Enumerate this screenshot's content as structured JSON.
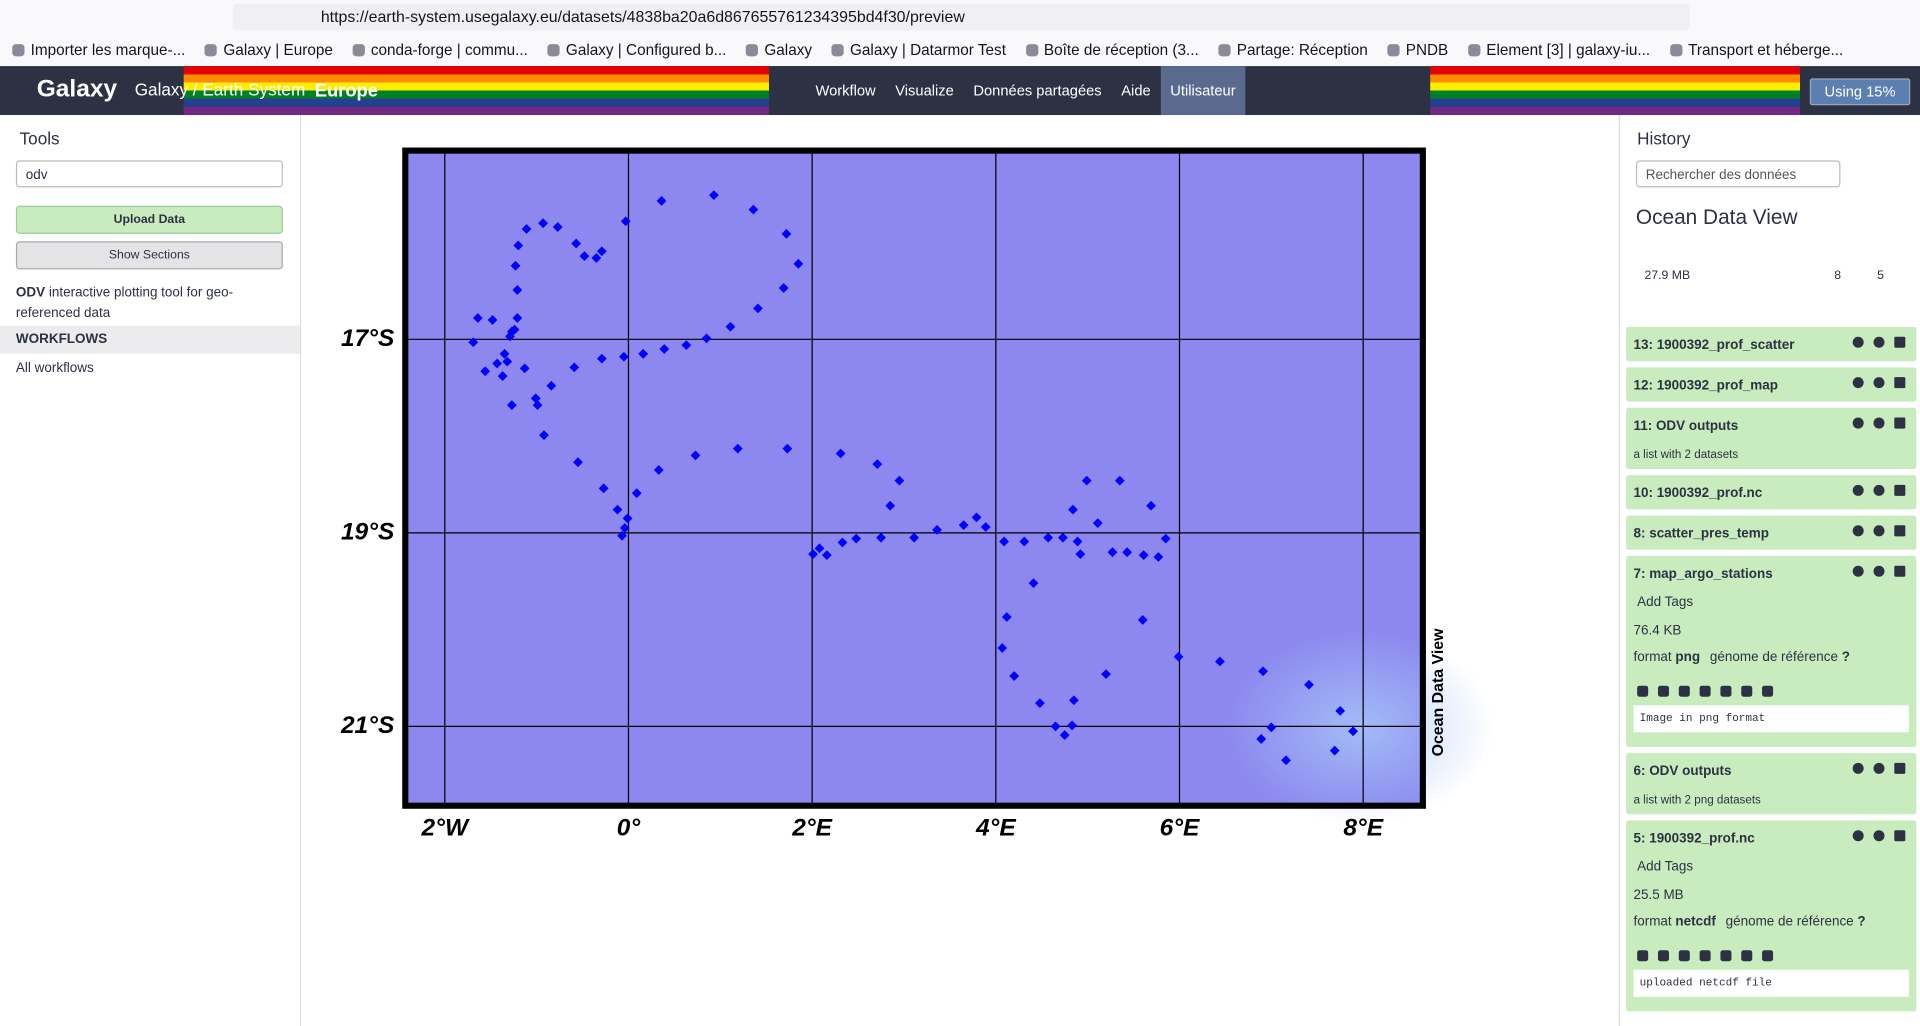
{
  "browser": {
    "url": "https://earth-system.usegalaxy.eu/datasets/4838ba20a6d867655761234395bd4f30/preview",
    "bookmarks": [
      "Importer les marque-...",
      "Galaxy | Europe",
      "conda-forge | commu...",
      "Galaxy | Configured b...",
      "Galaxy",
      "Galaxy | Datarmor Test",
      "Boîte de réception (3...",
      "Partage: Réception",
      "PNDB",
      "Element [3] | galaxy-iu...",
      "Transport et héberge..."
    ]
  },
  "masthead": {
    "brand": "Galaxy",
    "title": "Galaxy / Earth System",
    "region": "Europe",
    "nav": [
      "Workflow",
      "Visualize",
      "Données partagées",
      "Aide",
      "Utilisateur"
    ],
    "usage": "Using 15%"
  },
  "tools": {
    "title": "Tools",
    "search": "odv",
    "upload": "Upload Data",
    "show_sections": "Show Sections",
    "result": {
      "name": "ODV",
      "description": "interactive plotting tool for geo-referenced data"
    },
    "workflows_heading": "WORKFLOWS",
    "all_workflows": "All workflows"
  },
  "chart_data": {
    "type": "scatter",
    "side_label": "Ocean Data View",
    "color": "#0000ff",
    "background": "#8c88ef",
    "grid": true,
    "x": [
      -1.69,
      -1.64,
      -1.48,
      -1.56,
      -1.43,
      -1.37,
      -1.35,
      -1.32,
      -1.29,
      -1.27,
      -1.24,
      -1.21,
      -1.21,
      -1.23,
      -1.2,
      -1.11,
      -0.93,
      -0.77,
      -0.57,
      -0.48,
      -0.35,
      -0.29,
      -0.03,
      0.36,
      0.93,
      1.36,
      1.72,
      1.85,
      1.69,
      1.41,
      1.11,
      0.85,
      0.63,
      0.39,
      0.16,
      -0.05,
      -0.29,
      -0.59,
      -0.84,
      -1.01,
      -0.99,
      -1.27,
      -1.13,
      -0.92,
      -0.55,
      -0.27,
      -0.12,
      -0.01,
      -0.04,
      -0.07,
      0.09,
      0.33,
      0.73,
      1.19,
      1.73,
      2.31,
      2.71,
      2.95,
      2.85,
      2.01,
      2.08,
      2.16,
      2.33,
      2.48,
      2.75,
      3.11,
      3.36,
      3.65,
      3.79,
      3.89,
      4.09,
      4.31,
      4.57,
      4.73,
      4.89,
      4.92,
      4.84,
      4.99,
      5.11,
      5.27,
      5.43,
      5.35,
      5.61,
      5.69,
      5.77,
      5.85,
      4.41,
      4.12,
      4.07,
      4.2,
      4.48,
      4.65,
      4.75,
      4.83,
      4.85,
      5.2,
      5.6,
      5.99,
      6.44,
      6.91,
      7.41,
      7.75,
      7.89,
      7.69,
      7.16,
      7.0,
      6.89
    ],
    "y": [
      -17.03,
      -16.78,
      -16.8,
      -17.33,
      -17.25,
      -17.38,
      -17.15,
      -17.23,
      -16.97,
      -16.92,
      -16.9,
      -16.78,
      -16.49,
      -16.24,
      -16.03,
      -15.86,
      -15.8,
      -15.84,
      -16.01,
      -16.14,
      -16.16,
      -16.09,
      -15.78,
      -15.57,
      -15.51,
      -15.66,
      -15.91,
      -16.22,
      -16.47,
      -16.68,
      -16.87,
      -16.99,
      -17.06,
      -17.1,
      -17.15,
      -17.18,
      -17.2,
      -17.29,
      -17.48,
      -17.61,
      -17.68,
      -17.68,
      -17.3,
      -17.99,
      -18.27,
      -18.54,
      -18.76,
      -18.85,
      -18.95,
      -19.03,
      -18.59,
      -18.35,
      -18.2,
      -18.13,
      -18.13,
      -18.18,
      -18.29,
      -18.46,
      -18.72,
      -19.22,
      -19.16,
      -19.23,
      -19.1,
      -19.06,
      -19.05,
      -19.05,
      -18.97,
      -18.92,
      -18.84,
      -18.94,
      -19.09,
      -19.09,
      -19.05,
      -19.05,
      -19.09,
      -19.22,
      -18.76,
      -18.46,
      -18.9,
      -19.2,
      -19.2,
      -18.46,
      -19.23,
      -18.72,
      -19.25,
      -19.06,
      -19.52,
      -19.87,
      -20.19,
      -20.48,
      -20.76,
      -21.0,
      -21.09,
      -20.99,
      -20.73,
      -20.46,
      -19.9,
      -20.28,
      -20.33,
      -20.43,
      -20.57,
      -20.84,
      -21.05,
      -21.25,
      -21.35,
      -21.01,
      -21.13
    ],
    "xlim": [
      -2.43,
      8.65
    ],
    "ylim": [
      -21.82,
      -15.05
    ],
    "xticks": [
      {
        "value": -2,
        "label": "2°W"
      },
      {
        "value": 0,
        "label": "0°"
      },
      {
        "value": 2,
        "label": "2°E"
      },
      {
        "value": 4,
        "label": "4°E"
      },
      {
        "value": 6,
        "label": "6°E"
      },
      {
        "value": 8,
        "label": "8°E"
      }
    ],
    "yticks": [
      {
        "value": -17,
        "label": "17°S"
      },
      {
        "value": -19,
        "label": "19°S"
      },
      {
        "value": -21,
        "label": "21°S"
      }
    ]
  },
  "history": {
    "title": "History",
    "search": "Rechercher des données",
    "name": "Ocean Data View",
    "size": "27.9 MB",
    "shown": "8",
    "deleted": "5",
    "items": [
      {
        "title": "13: 1900392_prof_scatter"
      },
      {
        "title": "12: 1900392_prof_map"
      },
      {
        "title": "11: ODV outputs",
        "subtitle": "a list with 2 datasets"
      },
      {
        "title": "10: 1900392_prof.nc"
      },
      {
        "title": "8: scatter_pres_temp"
      },
      {
        "title": "7: map_argo_stations",
        "tags": "Add Tags",
        "size": "76.4 KB",
        "format_label": "format",
        "format": "png",
        "genome_label": "génome de référence",
        "genome": "?",
        "peek": "Image in png format"
      },
      {
        "title": "6: ODV outputs",
        "subtitle": "a list with 2 png datasets"
      },
      {
        "title": "5: 1900392_prof.nc",
        "tags": "Add Tags",
        "size": "25.5 MB",
        "format_label": "format",
        "format": "netcdf",
        "genome_label": "génome de référence",
        "genome": "?",
        "peek": "uploaded netcdf file"
      }
    ]
  }
}
